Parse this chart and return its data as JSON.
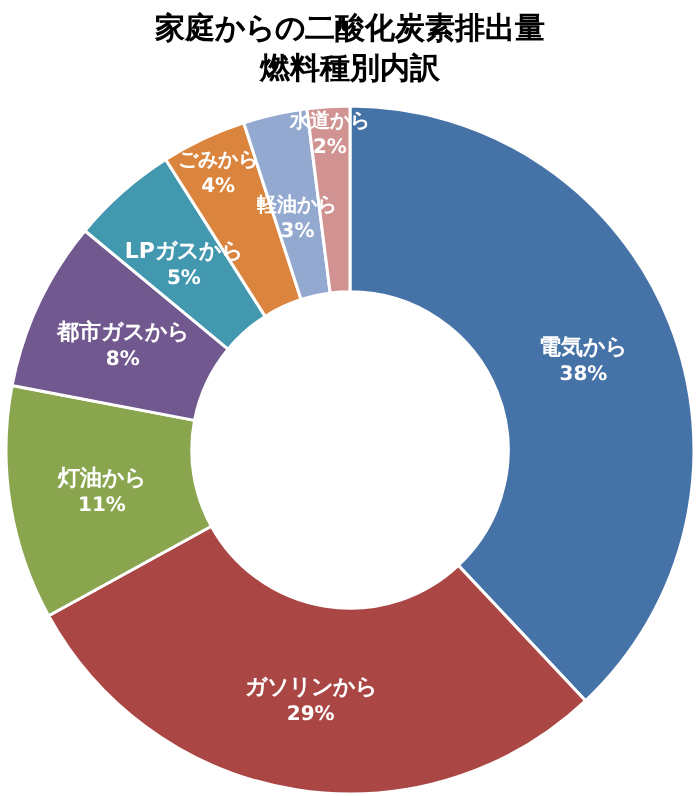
{
  "chart_data": {
    "type": "donut",
    "title": "家庭からの二酸化炭素排出量",
    "subtitle": "燃料種別内訳",
    "categories": [
      "電気から",
      "ガソリンから",
      "灯油から",
      "都市ガスから",
      "LPガスから",
      "ごみから",
      "軽油から",
      "水道から"
    ],
    "values": [
      38,
      29,
      11,
      8,
      5,
      4,
      3,
      2
    ],
    "colors": [
      "#4572a7",
      "#aa4643",
      "#89a54e",
      "#71588f",
      "#4198af",
      "#db843d",
      "#93a9cf",
      "#d19392"
    ],
    "value_labels": [
      "38%",
      "29%",
      "11%",
      "8%",
      "5%",
      "4%",
      "3%",
      "2%"
    ]
  }
}
